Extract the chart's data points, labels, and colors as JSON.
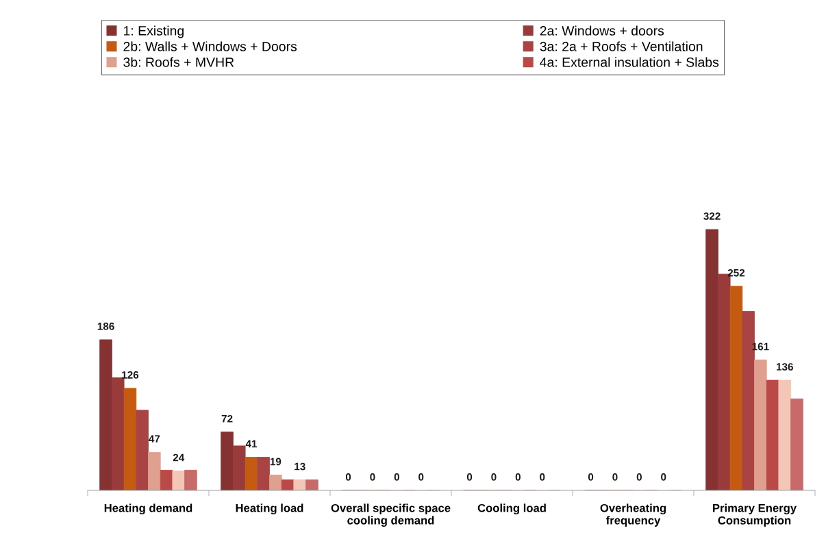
{
  "chart_data": {
    "type": "bar",
    "categories": [
      "Heating demand",
      "Heating load",
      "Overall specific space\ncooling demand",
      "Cooling load",
      "Overheating\nfrequency",
      "Primary Energy\nConsumption"
    ],
    "series": [
      {
        "name": "1: Existing",
        "color": "#863232",
        "values": [
          186,
          72,
          0,
          0,
          0,
          322
        ],
        "value_labels": [
          "186",
          "72",
          "0",
          "0",
          "0",
          "322"
        ]
      },
      {
        "name": "2a: Windows + doors",
        "color": "#9a3b3b",
        "values": [
          139,
          55,
          0,
          0,
          0,
          267
        ]
      },
      {
        "name": "2b: Walls + Windows + Doors",
        "color": "#c55a11",
        "values": [
          126,
          41,
          0,
          0,
          0,
          252
        ],
        "value_labels": [
          "126",
          "41",
          "0",
          "0",
          "0",
          "252"
        ]
      },
      {
        "name": "3a: 2a + Roofs + Ventilation",
        "color": "#aa4444",
        "values": [
          99,
          41,
          0,
          0,
          0,
          221
        ]
      },
      {
        "name": "3b: Roofs + MVHR",
        "color": "#e0a090",
        "values": [
          47,
          19,
          0,
          0,
          0,
          161
        ],
        "value_labels": [
          "47",
          "19",
          "0",
          "0",
          "0",
          "161"
        ]
      },
      {
        "name": "4a: External insulation + Slabs",
        "color": "#b94a48",
        "values": [
          25,
          13,
          0,
          0,
          0,
          136
        ]
      },
      {
        "color": "#f4c6b8",
        "values": [
          24,
          13,
          0,
          0,
          0,
          136
        ],
        "value_labels": [
          "24",
          "13",
          "0",
          "0",
          "0",
          "136"
        ]
      },
      {
        "color": "#c86a6a",
        "values": [
          25,
          13,
          0,
          0,
          0,
          113
        ]
      }
    ],
    "tick_labels": "x",
    "grid": false,
    "legend": "top"
  }
}
